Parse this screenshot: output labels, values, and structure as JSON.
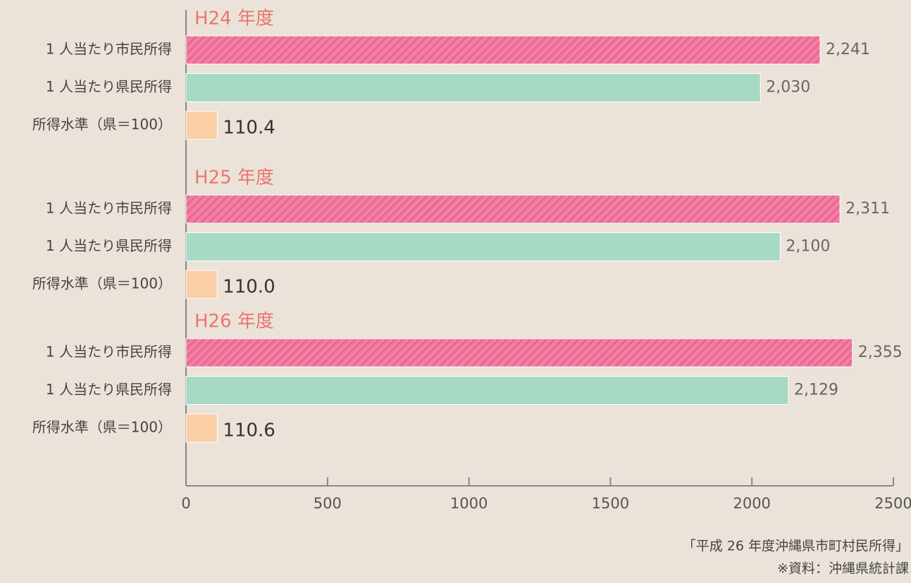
{
  "chart_data": {
    "type": "bar",
    "orientation": "horizontal",
    "groups": [
      "H24 年度",
      "H25 年度",
      "H26 年度"
    ],
    "series": [
      {
        "name": "1 人当たり市民所得",
        "color": "#f27fa5",
        "hatch": true,
        "values": [
          2241,
          2311,
          2355
        ],
        "value_labels": [
          "2,241",
          "2,311",
          "2,355"
        ]
      },
      {
        "name": "1 人当たり県民所得",
        "color": "#a8d9c4",
        "values": [
          2030,
          2100,
          2129
        ],
        "value_labels": [
          "2,030",
          "2,100",
          "2,129"
        ]
      },
      {
        "name": "所得水準（県＝100）",
        "color": "#fbcfa6",
        "values": [
          110.4,
          110.0,
          110.6
        ],
        "value_labels": [
          "110.4",
          "110.0",
          "110.6"
        ]
      }
    ],
    "xlim": [
      0,
      2500
    ],
    "xticks": [
      0,
      500,
      1000,
      1500,
      2000,
      2500
    ],
    "notes": [
      "「平成 26 年度沖縄県市町村民所得」",
      "※資料：沖縄県統計課"
    ]
  }
}
